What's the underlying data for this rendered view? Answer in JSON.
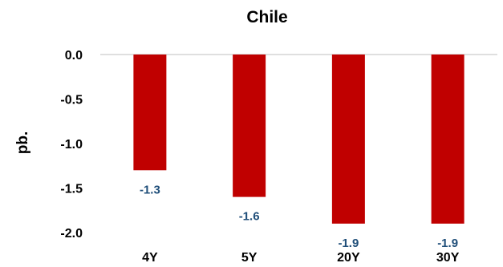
{
  "chart_data": {
    "type": "bar",
    "title": "Chile",
    "xlabel": "",
    "ylabel": "pb.",
    "categories": [
      "4Y",
      "5Y",
      "20Y",
      "30Y"
    ],
    "values": [
      -1.3,
      -1.6,
      -1.9,
      -1.9
    ],
    "data_labels": [
      "-1.3",
      "-1.6",
      "-1.9",
      "-1.9"
    ],
    "yticks": [
      "0.0",
      "-0.5",
      "-1.0",
      "-1.5",
      "-2.0"
    ],
    "ytick_values": [
      0.0,
      -0.5,
      -1.0,
      -1.5,
      -2.0
    ],
    "ylim": [
      -2.0,
      0.0
    ],
    "grid": false,
    "legend": "none",
    "colors": {
      "bar": "#c00000",
      "data_label": "#1f4e79",
      "axis": "#bfbfbf"
    }
  }
}
